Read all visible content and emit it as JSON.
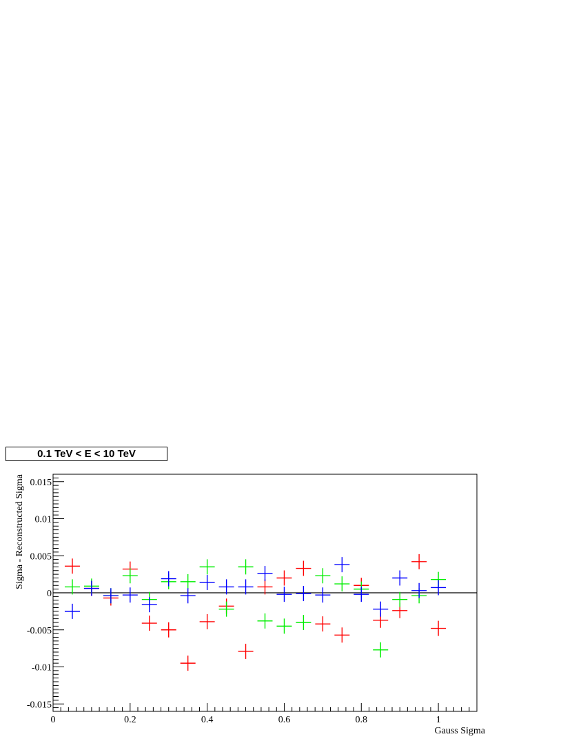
{
  "chart_data": {
    "type": "scatter",
    "title": "0.1 TeV < E < 10 TeV",
    "xlabel": "Gauss Sigma",
    "ylabel": "Sigma - Reconstructed Sigma",
    "xlim": [
      0,
      1.1
    ],
    "ylim": [
      -0.016,
      0.016
    ],
    "x_ticks": [
      "0",
      "0.2",
      "0.4",
      "0.6",
      "0.8",
      "1"
    ],
    "y_ticks": [
      "-0.015",
      "-0.01",
      "-0.005",
      "0",
      "0.005",
      "0.01",
      "0.015"
    ],
    "grid": false,
    "zero_line": true,
    "series": [
      {
        "color": "#ff0000",
        "x": [
          0.05,
          0.1,
          0.15,
          0.2,
          0.25,
          0.3,
          0.35,
          0.4,
          0.45,
          0.5,
          0.55,
          0.6,
          0.65,
          0.7,
          0.75,
          0.8,
          0.85,
          0.9,
          0.95,
          1.0
        ],
        "y": [
          0.0036,
          0.0006,
          -0.0007,
          0.0032,
          -0.0041,
          -0.005,
          -0.0095,
          -0.0039,
          -0.0018,
          -0.0079,
          0.0008,
          0.002,
          0.0033,
          -0.0042,
          -0.0057,
          0.001,
          -0.0037,
          -0.0024,
          0.0042,
          -0.0048
        ]
      },
      {
        "color": "#00ee00",
        "x": [
          0.05,
          0.1,
          0.15,
          0.2,
          0.25,
          0.3,
          0.35,
          0.4,
          0.45,
          0.5,
          0.55,
          0.6,
          0.65,
          0.7,
          0.75,
          0.8,
          0.85,
          0.9,
          0.95,
          1.0
        ],
        "y": [
          0.0008,
          0.0009,
          -0.0004,
          0.0023,
          -0.0009,
          0.0015,
          0.0015,
          0.0035,
          -0.0022,
          0.0035,
          -0.0038,
          -0.0045,
          -0.004,
          0.0023,
          0.0012,
          0.0005,
          -0.0077,
          -0.0009,
          -0.0004,
          0.0018
        ]
      },
      {
        "color": "#0000ff",
        "x": [
          0.05,
          0.1,
          0.15,
          0.2,
          0.25,
          0.3,
          0.35,
          0.4,
          0.45,
          0.5,
          0.55,
          0.6,
          0.65,
          0.7,
          0.75,
          0.8,
          0.85,
          0.9,
          0.95,
          1.0
        ],
        "y": [
          -0.0025,
          0.0006,
          -0.0004,
          -0.0003,
          -0.0016,
          0.0019,
          -0.0004,
          0.0014,
          0.0008,
          0.0008,
          0.0026,
          -0.0002,
          -0.0001,
          -0.0003,
          0.0038,
          -0.0002,
          -0.0022,
          0.002,
          0.0003,
          0.0007
        ]
      }
    ]
  }
}
